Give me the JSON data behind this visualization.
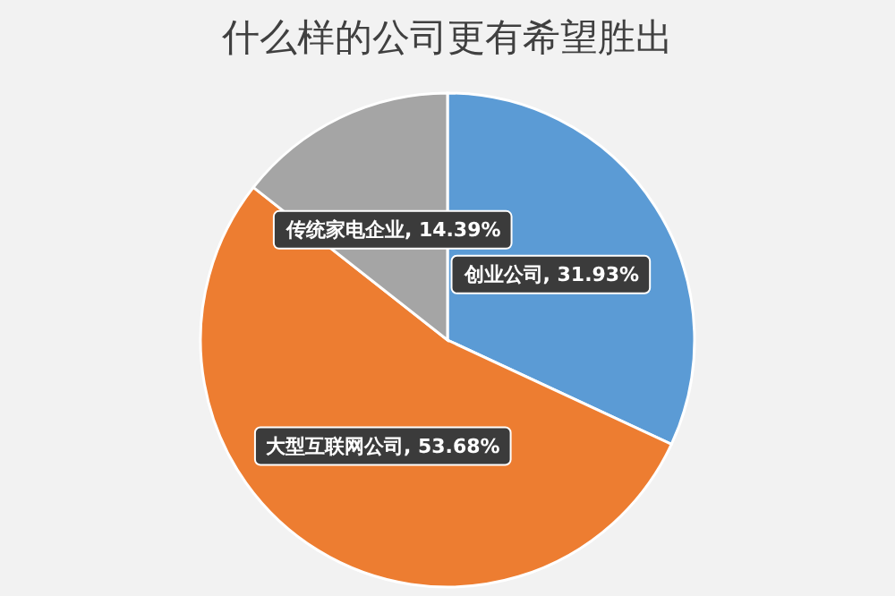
{
  "chart_data": {
    "type": "pie",
    "title": "什么样的公司更有希望胜出",
    "categories": [
      "创业公司",
      "大型互联网公司",
      "传统家电企业"
    ],
    "values": [
      31.93,
      53.68,
      14.39
    ],
    "colors": [
      "#5b9bd5",
      "#ed7d31",
      "#a5a5a5"
    ],
    "value_labels": [
      "31.93%",
      "53.68%",
      "14.39%"
    ]
  }
}
